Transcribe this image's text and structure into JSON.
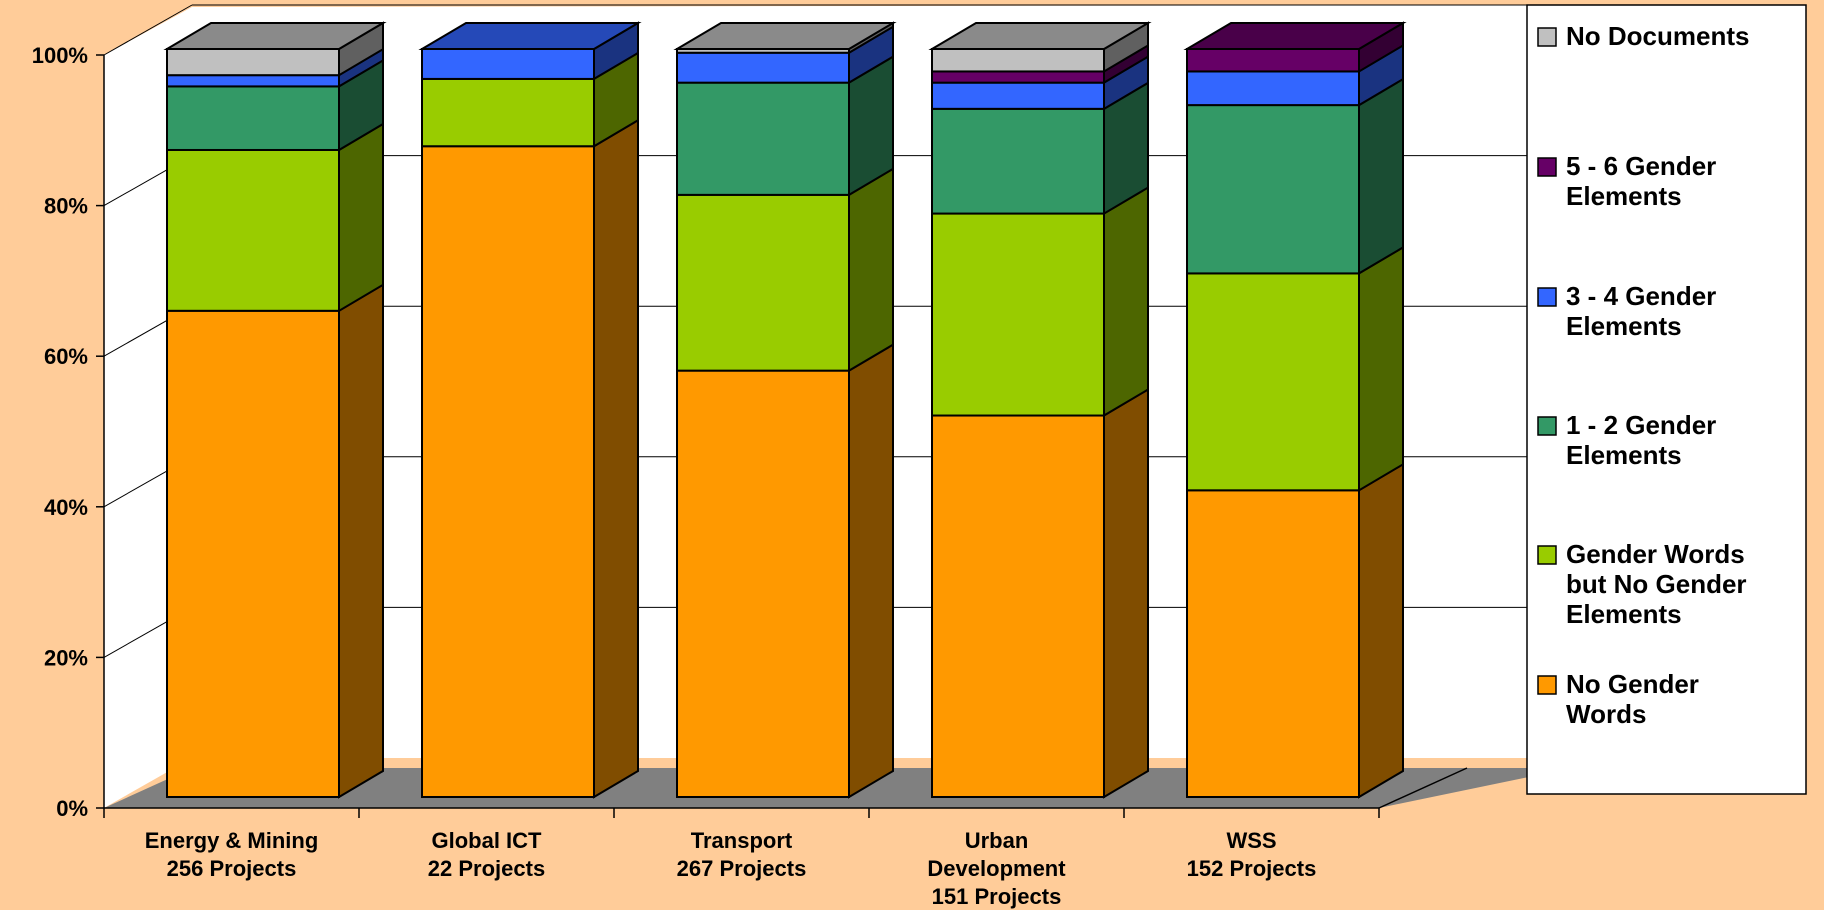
{
  "chart_data": {
    "type": "bar",
    "stacked": true,
    "three_d": true,
    "categories": [
      [
        "Energy & Mining",
        "256 Projects"
      ],
      [
        "Global ICT",
        "22 Projects"
      ],
      [
        "Transport",
        "267 Projects"
      ],
      [
        "Urban",
        "Development",
        "151 Projects"
      ],
      [
        "WSS",
        "152 Projects"
      ]
    ],
    "series": [
      {
        "name": "No Gender Words",
        "color": "#ff9900",
        "values": [
          65,
          87,
          57,
          51,
          41
        ]
      },
      {
        "name": "Gender Words but No Gender Elements",
        "color": "#99cc00",
        "values": [
          21.5,
          9,
          23.5,
          27,
          29
        ]
      },
      {
        "name": "1 - 2 Gender Elements",
        "color": "#339966",
        "values": [
          8.5,
          0,
          15,
          14,
          22.5
        ]
      },
      {
        "name": "3 - 4 Gender Elements",
        "color": "#3366ff",
        "values": [
          1.5,
          4,
          4,
          3.5,
          4.5
        ]
      },
      {
        "name": "5 - 6 Gender Elements",
        "color": "#660066",
        "values": [
          0,
          0,
          0,
          1.5,
          3
        ]
      },
      {
        "name": "No Documents",
        "color": "#c0c0c0",
        "values": [
          3.5,
          0,
          0.5,
          3,
          0
        ]
      }
    ],
    "ylim": [
      0,
      100
    ],
    "yticks": [
      "0%",
      "20%",
      "40%",
      "60%",
      "80%",
      "100%"
    ],
    "grid": true,
    "legend_position": "right",
    "legend_entries": [
      {
        "series": 5,
        "lines": [
          "No Documents"
        ]
      },
      {
        "series": 4,
        "lines": [
          "5 - 6 Gender",
          "Elements"
        ]
      },
      {
        "series": 3,
        "lines": [
          "3 - 4 Gender",
          "Elements"
        ]
      },
      {
        "series": 2,
        "lines": [
          "1 - 2 Gender",
          "Elements"
        ]
      },
      {
        "series": 1,
        "lines": [
          "Gender Words",
          "but No Gender",
          "Elements"
        ]
      },
      {
        "series": 0,
        "lines": [
          "No Gender",
          "Words"
        ]
      }
    ],
    "colors": {
      "background": "#ffcc99",
      "plot_wall": "#ffffff",
      "floor": "#808080"
    }
  }
}
